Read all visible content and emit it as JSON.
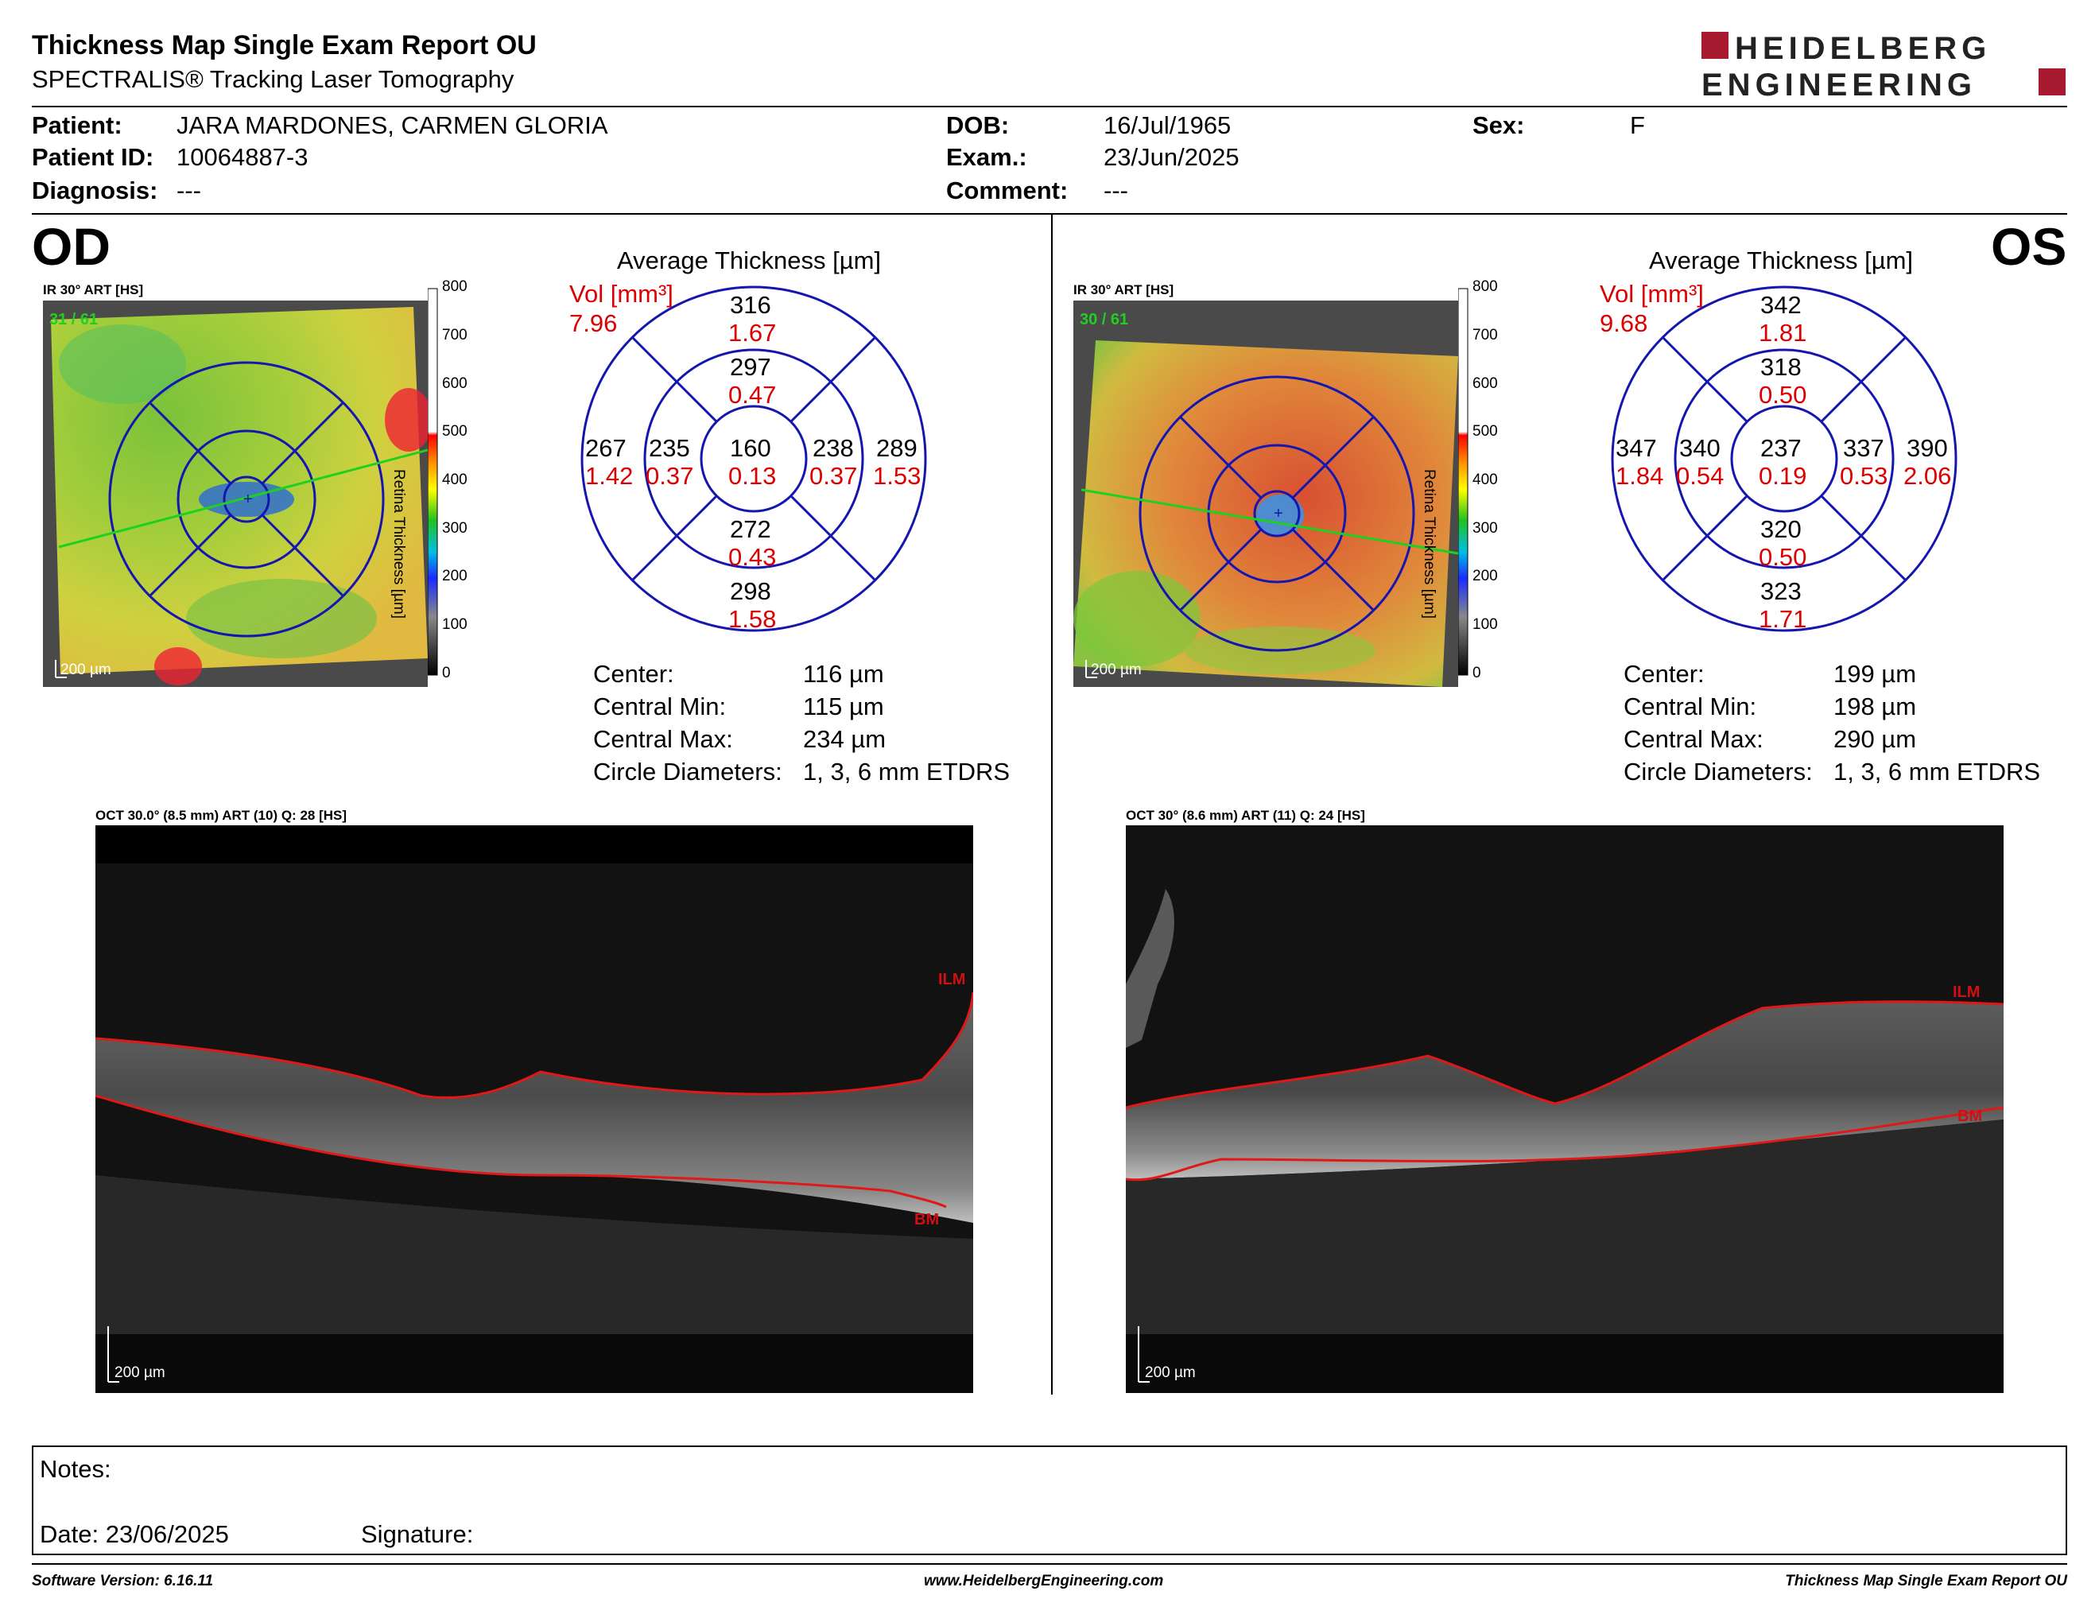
{
  "header": {
    "title": "Thickness Map Single Exam Report OU",
    "subtitle": "SPECTRALIS® Tracking Laser Tomography",
    "logo_line1": "HEIDELBERG",
    "logo_line2": "ENGINEERING",
    "brand_color": "#a6192e"
  },
  "patient": {
    "name_label": "Patient:",
    "name": "JARA MARDONES, CARMEN GLORIA",
    "id_label": "Patient ID:",
    "id": "10064887-3",
    "diagnosis_label": "Diagnosis:",
    "diagnosis": "---",
    "dob_label": "DOB:",
    "dob": "16/Jul/1965",
    "exam_label": "Exam.:",
    "exam": "23/Jun/2025",
    "comment_label": "Comment:",
    "comment": "---",
    "sex_label": "Sex:",
    "sex": "F"
  },
  "colorbar": {
    "ticks": [
      "800",
      "700",
      "600",
      "500",
      "400",
      "300",
      "200",
      "100",
      "0"
    ],
    "label": "Retina Thickness [µm]"
  },
  "od": {
    "eye": "OD",
    "ir_label": "IR 30° ART [HS]",
    "frames": "31 / 61",
    "scale": "200 µm",
    "avg_title": "Average Thickness [µm]",
    "vol_label": "Vol [mm³]",
    "vol": "7.96",
    "grid": {
      "center": {
        "t": "160",
        "v": "0.13"
      },
      "inner_top": {
        "t": "297",
        "v": "0.47"
      },
      "inner_bottom": {
        "t": "272",
        "v": "0.43"
      },
      "inner_left": {
        "t": "235",
        "v": "0.37"
      },
      "inner_right": {
        "t": "238",
        "v": "0.37"
      },
      "outer_top": {
        "t": "316",
        "v": "1.67"
      },
      "outer_bottom": {
        "t": "298",
        "v": "1.58"
      },
      "outer_left": {
        "t": "267",
        "v": "1.42"
      },
      "outer_right": {
        "t": "289",
        "v": "1.53"
      }
    },
    "stats": [
      {
        "label": "Center:",
        "value": "116 µm"
      },
      {
        "label": "Central Min:",
        "value": "115 µm"
      },
      {
        "label": "Central Max:",
        "value": "234 µm"
      },
      {
        "label": "Circle Diameters:",
        "value": "1, 3, 6 mm ETDRS"
      }
    ],
    "oct_label": "OCT 30.0° (8.5 mm) ART (10) Q: 28 [HS]",
    "ilm": "ILM",
    "bm": "BM",
    "oct_scale": "200 µm"
  },
  "os": {
    "eye": "OS",
    "ir_label": "IR 30° ART [HS]",
    "frames": "30 / 61",
    "scale": "200 µm",
    "avg_title": "Average Thickness [µm]",
    "vol_label": "Vol [mm³]",
    "vol": "9.68",
    "grid": {
      "center": {
        "t": "237",
        "v": "0.19"
      },
      "inner_top": {
        "t": "318",
        "v": "0.50"
      },
      "inner_bottom": {
        "t": "320",
        "v": "0.50"
      },
      "inner_left": {
        "t": "340",
        "v": "0.54"
      },
      "inner_right": {
        "t": "337",
        "v": "0.53"
      },
      "outer_top": {
        "t": "342",
        "v": "1.81"
      },
      "outer_bottom": {
        "t": "323",
        "v": "1.71"
      },
      "outer_left": {
        "t": "347",
        "v": "1.84"
      },
      "outer_right": {
        "t": "390",
        "v": "2.06"
      }
    },
    "stats": [
      {
        "label": "Center:",
        "value": "199 µm"
      },
      {
        "label": "Central Min:",
        "value": "198 µm"
      },
      {
        "label": "Central Max:",
        "value": "290 µm"
      },
      {
        "label": "Circle Diameters:",
        "value": "1, 3, 6 mm ETDRS"
      }
    ],
    "oct_label": "OCT 30° (8.6 mm) ART (11) Q: 24 [HS]",
    "ilm": "ILM",
    "bm": "BM",
    "oct_scale": "200 µm"
  },
  "notes": {
    "notes_label": "Notes:",
    "date_label": "Date: 23/06/2025",
    "signature_label": "Signature:"
  },
  "footer": {
    "software": "Software Version: 6.16.11",
    "website": "www.HeidelbergEngineering.com",
    "report_name": "Thickness Map Single Exam Report OU"
  }
}
